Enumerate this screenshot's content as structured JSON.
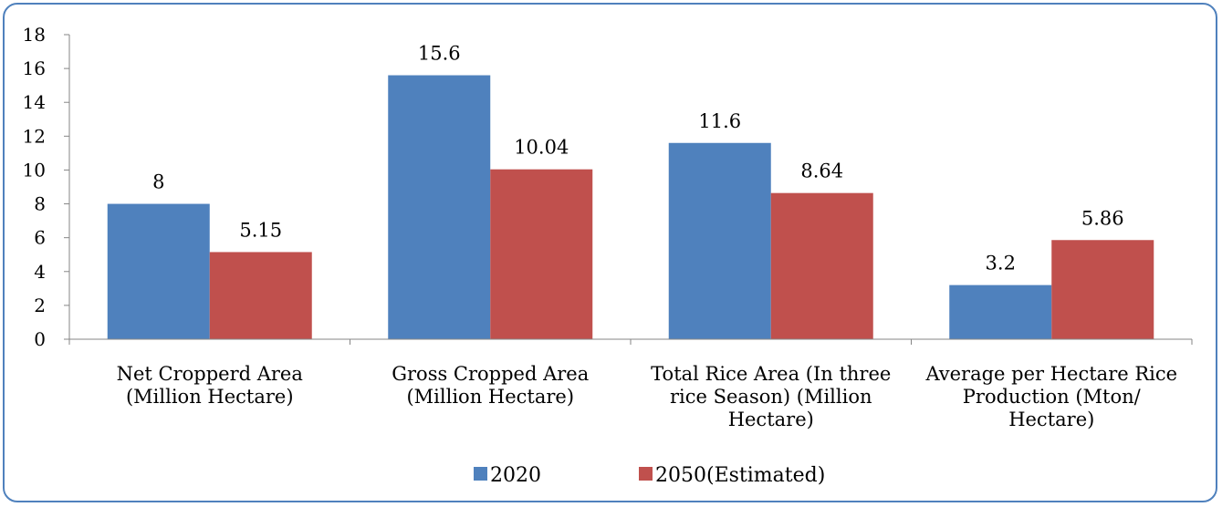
{
  "chart_data": {
    "type": "bar",
    "categories": [
      [
        "Net Cropperd Area",
        "(Million Hectare)"
      ],
      [
        "Gross Cropped Area",
        "(Million Hectare)"
      ],
      [
        "Total Rice Area (In three",
        "rice Season) (Million",
        "Hectare)"
      ],
      [
        "Average per Hectare Rice",
        "Production (Mton/",
        "Hectare)"
      ]
    ],
    "series": [
      {
        "name": "2020",
        "values": [
          8,
          15.6,
          11.6,
          3.2
        ],
        "labels": [
          "8",
          "15.6",
          "11.6",
          "3.2"
        ],
        "color": "#4f81bd"
      },
      {
        "name": "2050(Estimated)",
        "values": [
          5.15,
          10.04,
          8.64,
          5.86
        ],
        "labels": [
          "5.15",
          "10.04",
          "8.64",
          "5.86"
        ],
        "color": "#c0504d"
      }
    ],
    "ylim": [
      0,
      18
    ],
    "yticks": [
      "0",
      "2",
      "4",
      "6",
      "8",
      "10",
      "12",
      "14",
      "16",
      "18"
    ],
    "grid": false,
    "legend_position": "bottom"
  }
}
